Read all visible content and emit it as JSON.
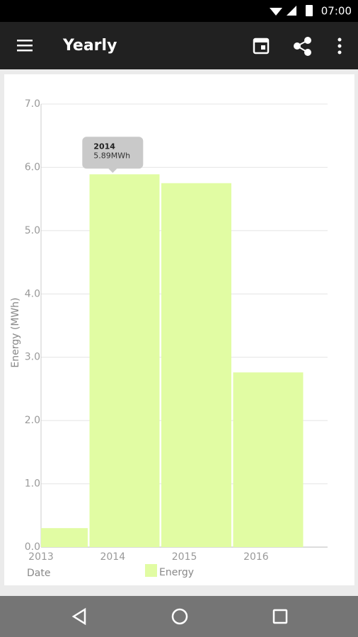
{
  "status_bar": {
    "time": "07:00"
  },
  "app_bar": {
    "title": "Yearly"
  },
  "chart_data": {
    "type": "bar",
    "x_label": "Date",
    "y_label": "Energy (MWh)",
    "categories": [
      "2013",
      "2014",
      "2015",
      "2016"
    ],
    "series": [
      {
        "name": "Energy",
        "color": "#e1fca3",
        "values": [
          0.3,
          5.89,
          5.75,
          2.76
        ],
        "value_labels": [
          null,
          "5.89MWh",
          null,
          null
        ]
      }
    ],
    "ylim": [
      0,
      7
    ],
    "yticks": [
      {
        "value": 0,
        "label": "0.0"
      },
      {
        "value": 1,
        "label": "1.0"
      },
      {
        "value": 2,
        "label": "2.0"
      },
      {
        "value": 3,
        "label": "3.0"
      },
      {
        "value": 4,
        "label": "4.0"
      },
      {
        "value": 5,
        "label": "5.0"
      },
      {
        "value": 6,
        "label": "6.0"
      },
      {
        "value": 7,
        "label": "7.0"
      }
    ],
    "grid": true
  }
}
